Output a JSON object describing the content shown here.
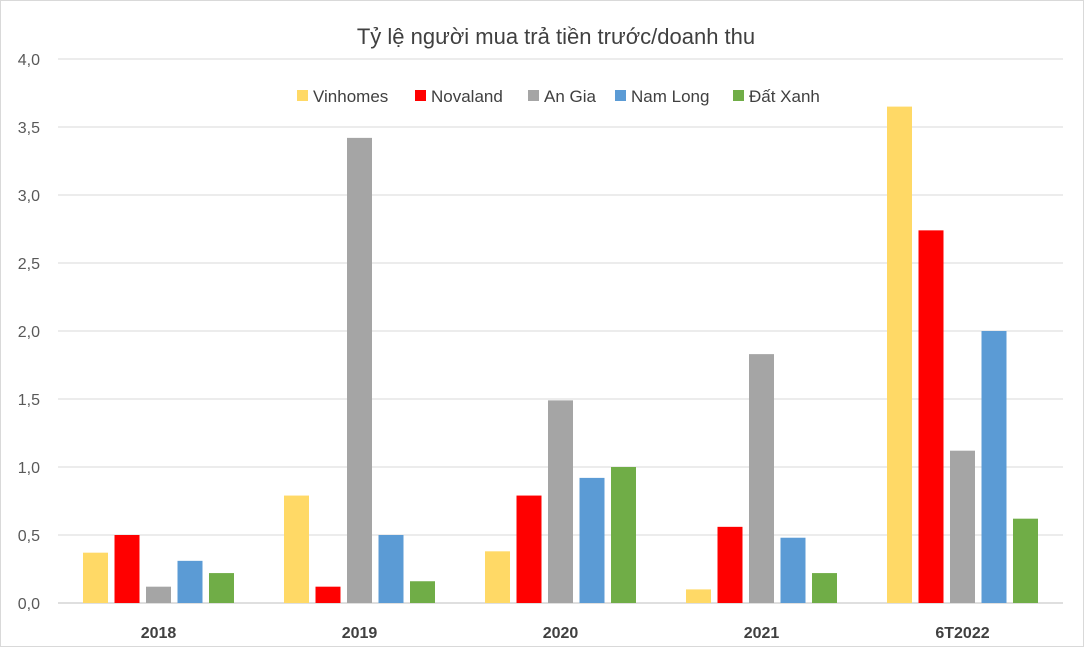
{
  "chart_data": {
    "type": "bar",
    "title": "Tỷ lệ người mua trả tiền trước/doanh thu",
    "xlabel": "",
    "ylabel": "",
    "categories": [
      "2018",
      "2019",
      "2020",
      "2021",
      "6T2022"
    ],
    "ylim": [
      0,
      4
    ],
    "yticks": [
      "0,0",
      "0,5",
      "1,0",
      "1,5",
      "2,0",
      "2,5",
      "3,0",
      "3,5",
      "4,0"
    ],
    "grid": true,
    "legend_position": "top",
    "series": [
      {
        "name": "Vinhomes",
        "color": "#FFD966",
        "values": [
          0.37,
          0.79,
          0.38,
          0.1,
          3.65
        ]
      },
      {
        "name": "Novaland",
        "color": "#FF0000",
        "values": [
          0.5,
          0.12,
          0.79,
          0.56,
          2.74
        ]
      },
      {
        "name": "An Gia",
        "color": "#A5A5A5",
        "values": [
          0.12,
          3.42,
          1.49,
          1.83,
          1.12
        ]
      },
      {
        "name": "Nam Long",
        "color": "#5B9BD5",
        "values": [
          0.31,
          0.5,
          0.92,
          0.48,
          2.0
        ]
      },
      {
        "name": "Đất Xanh",
        "color": "#70AD47",
        "values": [
          0.22,
          0.16,
          1.0,
          0.22,
          0.62
        ]
      }
    ]
  }
}
